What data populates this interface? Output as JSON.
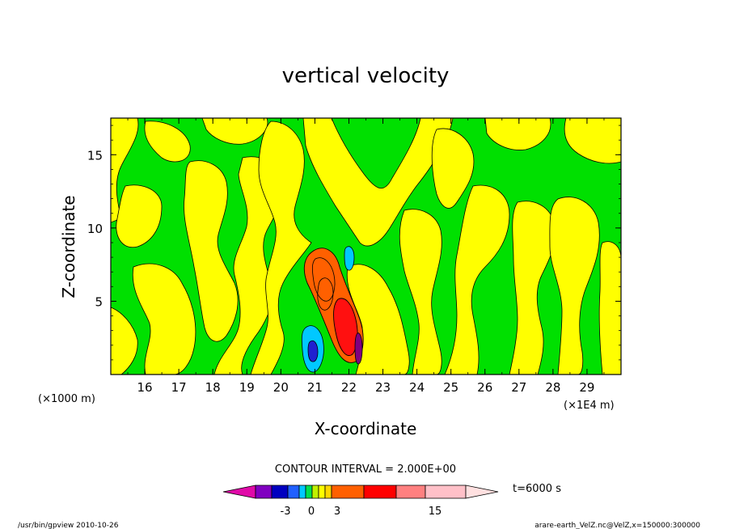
{
  "chart_data": {
    "type": "contour",
    "title": "vertical velocity",
    "xlabel": "X-coordinate",
    "ylabel": "Z-coordinate",
    "x_unit_left": "(×1000 m)",
    "x_unit_right": "(×1E4 m)",
    "x_ticks": [
      "16",
      "17",
      "18",
      "19",
      "20",
      "21",
      "22",
      "23",
      "24",
      "25",
      "26",
      "27",
      "28",
      "29"
    ],
    "x_tick_values": [
      160000,
      170000,
      180000,
      190000,
      200000,
      210000,
      220000,
      230000,
      240000,
      250000,
      260000,
      270000,
      280000,
      290000
    ],
    "y_ticks": [
      "5",
      "10",
      "15"
    ],
    "y_tick_values": [
      5000,
      10000,
      15000
    ],
    "xlim": [
      150000,
      300000
    ],
    "ylim": [
      0,
      17500
    ],
    "contour_interval_label": "CONTOUR INTERVAL = 2.000E+00",
    "colorbar": {
      "levels": [
        -3,
        0,
        3,
        15
      ],
      "tick_labels": [
        "-3",
        "0",
        "3",
        "15"
      ],
      "colors": [
        "#e00aa8",
        "#8000c0",
        "#0000c0",
        "#2060ff",
        "#00c8ff",
        "#00e050",
        "#c0f000",
        "#ffff00",
        "#ffd700",
        "#ff6000",
        "#ff0000",
        "#ff8080",
        "#ffc0c8",
        "#ffe0e0"
      ]
    },
    "time_label": "t=6000 s",
    "field_colors": {
      "background_green": "#00e000",
      "yellow": "#ffff00",
      "orange": "#ff6000",
      "red": "#ff1010",
      "cyan": "#00c8ff",
      "blue": "#2020d0",
      "purple": "#800080"
    }
  },
  "footer": {
    "left": "/usr/bin/gpview   2010-10-26",
    "right": "arare-earth_VelZ.nc@VelZ,x=150000:300000"
  }
}
